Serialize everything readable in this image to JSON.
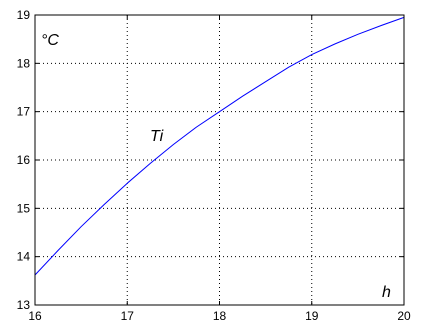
{
  "chart_data": {
    "type": "line",
    "title": "",
    "xlabel": "h",
    "ylabel": "°C",
    "xlim": [
      16,
      20
    ],
    "ylim": [
      13,
      19
    ],
    "grid": true,
    "x_ticks": [
      "16",
      "17",
      "18",
      "19",
      "20"
    ],
    "y_ticks": [
      "13",
      "14",
      "15",
      "16",
      "17",
      "18",
      "19"
    ],
    "annotations": [
      {
        "text": "Ti"
      }
    ],
    "series": [
      {
        "color": "#0000ff",
        "x": [
          16.0,
          16.25,
          16.5,
          16.75,
          17.0,
          17.25,
          17.5,
          17.75,
          18.0,
          18.25,
          18.5,
          18.75,
          19.0,
          19.25,
          19.5,
          19.75,
          20.0
        ],
        "y": [
          13.62,
          14.13,
          14.62,
          15.08,
          15.52,
          15.93,
          16.32,
          16.68,
          17.0,
          17.32,
          17.62,
          17.92,
          18.18,
          18.4,
          18.6,
          18.78,
          18.95
        ]
      }
    ]
  }
}
